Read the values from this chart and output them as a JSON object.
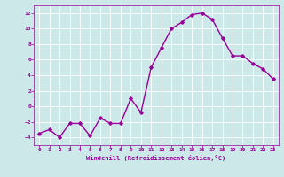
{
  "x": [
    0,
    1,
    2,
    3,
    4,
    5,
    6,
    7,
    8,
    9,
    10,
    11,
    12,
    13,
    14,
    15,
    16,
    17,
    18,
    19,
    20,
    21,
    22,
    23
  ],
  "y": [
    -3.5,
    -3.0,
    -4.0,
    -2.2,
    -2.2,
    -3.8,
    -1.5,
    -2.2,
    -2.2,
    1.0,
    -0.8,
    5.0,
    7.5,
    10.0,
    10.8,
    11.8,
    12.0,
    11.2,
    8.8,
    6.5,
    6.5,
    5.5,
    4.8,
    3.5
  ],
  "line_color": "#990099",
  "marker": "D",
  "marker_size": 1.8,
  "xlabel": "Windchill (Refroidissement éolien,°C)",
  "xlim": [
    -0.5,
    23.5
  ],
  "ylim": [
    -5,
    13
  ],
  "yticks": [
    -4,
    -2,
    0,
    2,
    4,
    6,
    8,
    10,
    12
  ],
  "xticks": [
    0,
    1,
    2,
    3,
    4,
    5,
    6,
    7,
    8,
    9,
    10,
    11,
    12,
    13,
    14,
    15,
    16,
    17,
    18,
    19,
    20,
    21,
    22,
    23
  ],
  "bg_color": "#cce8e8",
  "grid_color": "#b0d0d0",
  "tick_color": "#990099",
  "label_color": "#990099",
  "linewidth": 1.0
}
